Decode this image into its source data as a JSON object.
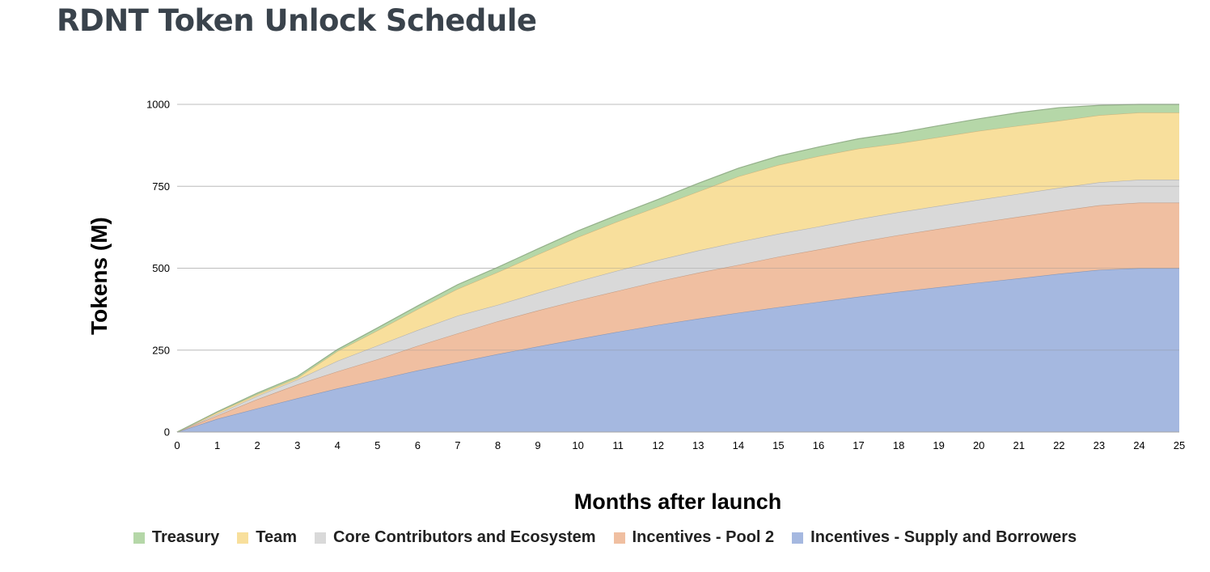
{
  "title": "RDNT Token Unlock Schedule",
  "chart_data": {
    "type": "area",
    "stacked": true,
    "title": "RDNT Token Unlock Schedule",
    "xlabel": "Months after launch",
    "ylabel": "Tokens (M)",
    "x": [
      0,
      1,
      2,
      3,
      4,
      5,
      6,
      7,
      8,
      9,
      10,
      11,
      12,
      13,
      14,
      15,
      16,
      17,
      18,
      19,
      20,
      21,
      22,
      23,
      24,
      25
    ],
    "xlim": [
      0,
      25
    ],
    "ylim": [
      0,
      1000
    ],
    "yticks": [
      0,
      250,
      500,
      750,
      1000
    ],
    "grid": true,
    "legend_position": "bottom",
    "series": [
      {
        "name": "Incentives - Supply and Borrowers",
        "color": "#a5b8e0",
        "values": [
          0,
          40,
          72,
          103,
          133,
          160,
          188,
          213,
          238,
          261,
          284,
          306,
          327,
          346,
          364,
          381,
          397,
          413,
          428,
          442,
          456,
          469,
          483,
          495,
          500,
          500
        ]
      },
      {
        "name": "Incentives - Pool 2",
        "color": "#f0bfa1",
        "values": [
          0,
          10,
          28,
          42,
          52,
          62,
          75,
          88,
          100,
          110,
          118,
          125,
          133,
          140,
          146,
          154,
          160,
          167,
          173,
          178,
          183,
          188,
          192,
          197,
          200,
          200
        ]
      },
      {
        "name": "Core Contributors and Ecosystem",
        "color": "#d9d9d9",
        "values": [
          0,
          5,
          10,
          15,
          32,
          42,
          48,
          54,
          50,
          54,
          58,
          62,
          65,
          68,
          70,
          70,
          70,
          70,
          70,
          70,
          70,
          70,
          70,
          70,
          70,
          70
        ]
      },
      {
        "name": "Team",
        "color": "#f8df9c",
        "values": [
          0,
          5,
          5,
          5,
          30,
          46,
          64,
          82,
          100,
          117,
          135,
          150,
          163,
          180,
          200,
          210,
          215,
          215,
          210,
          210,
          210,
          208,
          205,
          205,
          205,
          205
        ]
      },
      {
        "name": "Treasury",
        "color": "#b5d7a8",
        "values": [
          0,
          2,
          4,
          5,
          5,
          8,
          10,
          13,
          15,
          17,
          19,
          20,
          22,
          25,
          25,
          27,
          28,
          30,
          32,
          35,
          37,
          40,
          40,
          30,
          25,
          25
        ]
      }
    ]
  }
}
